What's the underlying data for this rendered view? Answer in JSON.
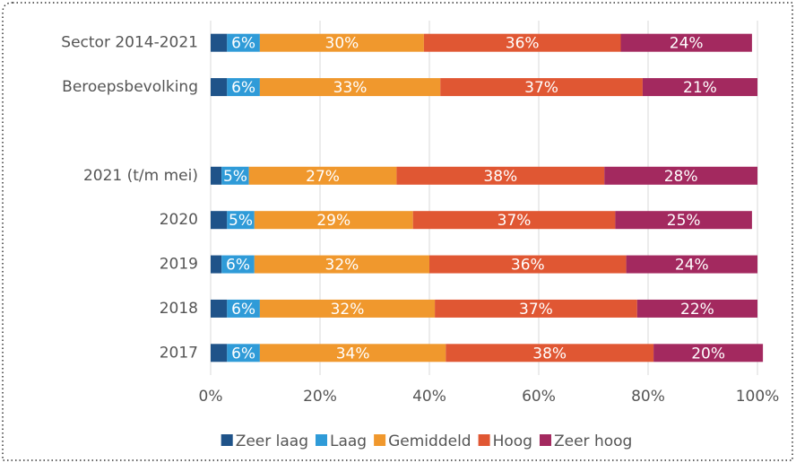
{
  "chart_data": {
    "type": "stacked-bar-horizontal",
    "categories": [
      "Sector 2014-2021",
      "Beroepsbevolking",
      null,
      "2021 (t/m mei)",
      "2020",
      "2019",
      "2018",
      "2017"
    ],
    "series": [
      {
        "name": "Zeer laag",
        "color": "#1f5389",
        "values": [
          3,
          3,
          null,
          2,
          3,
          2,
          3,
          3
        ]
      },
      {
        "name": "Laag",
        "color": "#2f9bd8",
        "values": [
          6,
          6,
          null,
          5,
          5,
          6,
          6,
          6
        ],
        "value_labels": [
          "6%",
          "6%",
          null,
          "5%",
          "5%",
          "6%",
          "6%",
          "6%"
        ]
      },
      {
        "name": "Gemiddeld",
        "color": "#f0982d",
        "values": [
          30,
          33,
          null,
          27,
          29,
          32,
          32,
          34
        ],
        "value_labels": [
          "30%",
          "33%",
          null,
          "27%",
          "29%",
          "32%",
          "32%",
          "34%"
        ]
      },
      {
        "name": "Hoog",
        "color": "#e05733",
        "values": [
          36,
          37,
          null,
          38,
          37,
          36,
          37,
          38
        ],
        "value_labels": [
          "36%",
          "37%",
          null,
          "38%",
          "37%",
          "36%",
          "37%",
          "38%"
        ]
      },
      {
        "name": "Zeer hoog",
        "color": "#a3295f",
        "values": [
          24,
          21,
          null,
          28,
          25,
          24,
          22,
          20
        ],
        "value_labels": [
          "24%",
          "21%",
          null,
          "28%",
          "25%",
          "24%",
          "22%",
          "20%"
        ]
      }
    ],
    "xlim": [
      0,
      100
    ],
    "xticks": [
      {
        "value": 0,
        "label": "0%"
      },
      {
        "value": 20,
        "label": "20%"
      },
      {
        "value": 40,
        "label": "40%"
      },
      {
        "value": 60,
        "label": "60%"
      },
      {
        "value": 80,
        "label": "80%"
      },
      {
        "value": 100,
        "label": "100%"
      }
    ],
    "grid": true,
    "legend": "bottom"
  }
}
